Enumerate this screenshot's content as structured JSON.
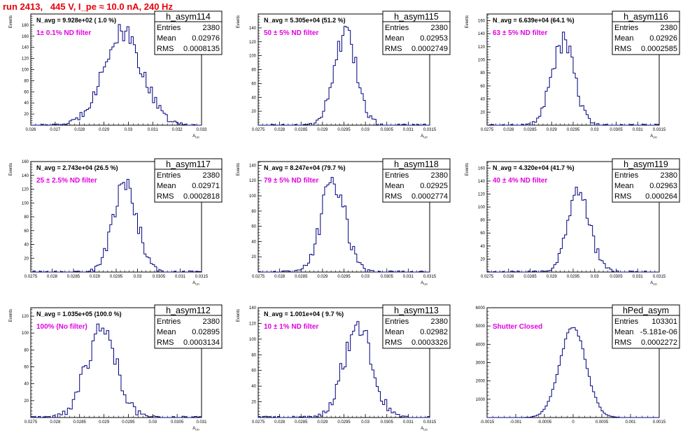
{
  "page_title": "run 2413,   445 V, I_pe ≈ 10.0 nA, 240 Hz",
  "colors": {
    "title": "#e8000b",
    "histogram": "#000080",
    "filter_label": "#e000e0",
    "frame": "#000000"
  },
  "chart_data": [
    {
      "type": "histogram",
      "name": "h_asym114",
      "stats": {
        "Entries": "2380",
        "Mean": "0.02976",
        "RMS": "0.0008135"
      },
      "label": "N_avg = 9.928e+02 ( 1.0 %)",
      "filter": "1± 0.1% ND filter",
      "xlabel": "A_UD",
      "ylabel": "Events",
      "xlim": [
        0.026,
        0.033
      ],
      "ylim": [
        0,
        200
      ],
      "xticks": [
        "0.026",
        "0.027",
        "0.028",
        "0.029",
        "0.03",
        "0.031",
        "0.032",
        "0.033"
      ],
      "yticks": [
        "20",
        "40",
        "60",
        "80",
        "100",
        "120",
        "140",
        "160",
        "180"
      ],
      "mean": 0.02976,
      "rms": 0.0008135,
      "peak": 190,
      "bin_width": 8.75e-05
    },
    {
      "type": "histogram",
      "name": "h_asym115",
      "stats": {
        "Entries": "2380",
        "Mean": "0.02953",
        "RMS": "0.0002749"
      },
      "label": "N_avg = 5.305e+04 (51.2 %)",
      "filter": "50 ± 5% ND filter",
      "xlabel": "A_UD",
      "ylabel": "Events",
      "xlim": [
        0.0275,
        0.0315
      ],
      "ylim": [
        0,
        160
      ],
      "xticks": [
        "0.0275",
        "0.028",
        "0.0285",
        "0.029",
        "0.0295",
        "0.03",
        "0.0305",
        "0.031",
        "0.0315"
      ],
      "yticks": [
        "20",
        "40",
        "60",
        "80",
        "100",
        "120",
        "140"
      ],
      "mean": 0.02953,
      "rms": 0.0002749,
      "peak": 147,
      "bin_width": 5e-05
    },
    {
      "type": "histogram",
      "name": "h_asym116",
      "stats": {
        "Entries": "2380",
        "Mean": "0.02926",
        "RMS": "0.0002585"
      },
      "label": "N_avg = 6.639e+04 (64.1 %)",
      "filter": "63 ± 5% ND filter",
      "xlabel": "A_UD",
      "ylabel": "Events",
      "xlim": [
        0.0275,
        0.0315
      ],
      "ylim": [
        0,
        170
      ],
      "xticks": [
        "0.0275",
        "0.028",
        "0.0285",
        "0.029",
        "0.0295",
        "0.03",
        "0.0305",
        "0.031",
        "0.0315"
      ],
      "yticks": [
        "20",
        "40",
        "60",
        "80",
        "100",
        "120",
        "140",
        "160"
      ],
      "mean": 0.02926,
      "rms": 0.0002585,
      "peak": 150,
      "bin_width": 5e-05
    },
    {
      "type": "histogram",
      "name": "h_asym117",
      "stats": {
        "Entries": "2380",
        "Mean": "0.02971",
        "RMS": "0.0002818"
      },
      "label": "N_avg = 2.743e+04 (26.5 %)",
      "filter": "25 ± 2.5% ND filter",
      "xlabel": "A_UD",
      "ylabel": "Events",
      "xlim": [
        0.0275,
        0.0315
      ],
      "ylim": [
        0,
        160
      ],
      "xticks": [
        "0.0275",
        "0.028",
        "0.0285",
        "0.029",
        "0.0295",
        "0.03",
        "0.0305",
        "0.031",
        "0.0315"
      ],
      "yticks": [
        "20",
        "40",
        "60",
        "80",
        "100",
        "120",
        "140",
        "160"
      ],
      "mean": 0.02971,
      "rms": 0.0002818,
      "peak": 147,
      "bin_width": 5e-05
    },
    {
      "type": "histogram",
      "name": "h_asym118",
      "stats": {
        "Entries": "2380",
        "Mean": "0.02925",
        "RMS": "0.0002774"
      },
      "label": "N_avg = 8.247e+04 (79.7 %)",
      "filter": "79 ± 5% ND filter",
      "xlabel": "A_UD",
      "ylabel": "Events",
      "xlim": [
        0.0275,
        0.0315
      ],
      "ylim": [
        0,
        145
      ],
      "xticks": [
        "0.0275",
        "0.028",
        "0.0285",
        "0.029",
        "0.0295",
        "0.03",
        "0.0305",
        "0.031",
        "0.0315"
      ],
      "yticks": [
        "20",
        "40",
        "60",
        "80",
        "100",
        "120",
        "140"
      ],
      "mean": 0.02925,
      "rms": 0.0002774,
      "peak": 140,
      "bin_width": 5e-05
    },
    {
      "type": "histogram",
      "name": "h_asym119",
      "stats": {
        "Entries": "2380",
        "Mean": "0.02963",
        "RMS": "0.000264"
      },
      "label": "N_avg = 4.320e+04 (41.7 %)",
      "filter": "40 ± 4% ND filter",
      "xlabel": "A_UD",
      "ylabel": "Events",
      "xlim": [
        0.0275,
        0.0315
      ],
      "ylim": [
        0,
        170
      ],
      "xticks": [
        "0.0275",
        "0.028",
        "0.0285",
        "0.029",
        "0.0295",
        "0.03",
        "0.0305",
        "0.031",
        "0.0315"
      ],
      "yticks": [
        "20",
        "40",
        "60",
        "80",
        "100",
        "120",
        "140",
        "160"
      ],
      "mean": 0.02963,
      "rms": 0.000264,
      "peak": 142,
      "bin_width": 5e-05
    },
    {
      "type": "histogram",
      "name": "h_asym112",
      "stats": {
        "Entries": "2380",
        "Mean": "0.02895",
        "RMS": "0.0003134"
      },
      "label": "N_avg = 1.035e+05 (100.0 %)",
      "filter": "100% (No filter)",
      "xlabel": "A_UD",
      "ylabel": "Events",
      "xlim": [
        0.0275,
        0.031
      ],
      "ylim": [
        0,
        130
      ],
      "xticks": [
        "0.0275",
        "0.028",
        "0.0285",
        "0.029",
        "0.0295",
        "0.03",
        "0.0305",
        "0.031"
      ],
      "yticks": [
        "20",
        "40",
        "60",
        "80",
        "100",
        "120"
      ],
      "mean": 0.02895,
      "rms": 0.0003134,
      "peak": 120,
      "bin_width": 5e-05
    },
    {
      "type": "histogram",
      "name": "h_asym113",
      "stats": {
        "Entries": "2380",
        "Mean": "0.02982",
        "RMS": "0.0003326"
      },
      "label": "N_avg = 1.001e+04 ( 9.7 %)",
      "filter": "10 ± 1% ND filter",
      "xlabel": "A_UD",
      "ylabel": "Events",
      "xlim": [
        0.0275,
        0.0315
      ],
      "ylim": [
        0,
        140
      ],
      "xticks": [
        "0.0275",
        "0.028",
        "0.0285",
        "0.029",
        "0.0295",
        "0.03",
        "0.0305",
        "0.031",
        "0.0315"
      ],
      "yticks": [
        "20",
        "40",
        "60",
        "80",
        "100",
        "120",
        "140"
      ],
      "mean": 0.02982,
      "rms": 0.0003326,
      "peak": 135,
      "bin_width": 5e-05
    },
    {
      "type": "histogram",
      "name": "hPed_asym",
      "stats": {
        "Entries": "103301",
        "Mean": "-5.181e-06",
        "RMS": "0.0002272"
      },
      "label": "",
      "filter": "Shutter Closed",
      "xlabel": "",
      "ylabel": "",
      "xlim": [
        -0.0015,
        0.0015
      ],
      "ylim": [
        0,
        6000
      ],
      "xticks": [
        "-0.0015",
        "-0.001",
        "-0.0005",
        "0",
        "0.0005",
        "0.001",
        "0.0015"
      ],
      "yticks": [
        "1000",
        "2000",
        "3000",
        "4000",
        "5000",
        "6000"
      ],
      "mean": -5.181e-06,
      "rms": 0.0002272,
      "peak": 5700,
      "bin_width": 3.75e-05
    }
  ]
}
